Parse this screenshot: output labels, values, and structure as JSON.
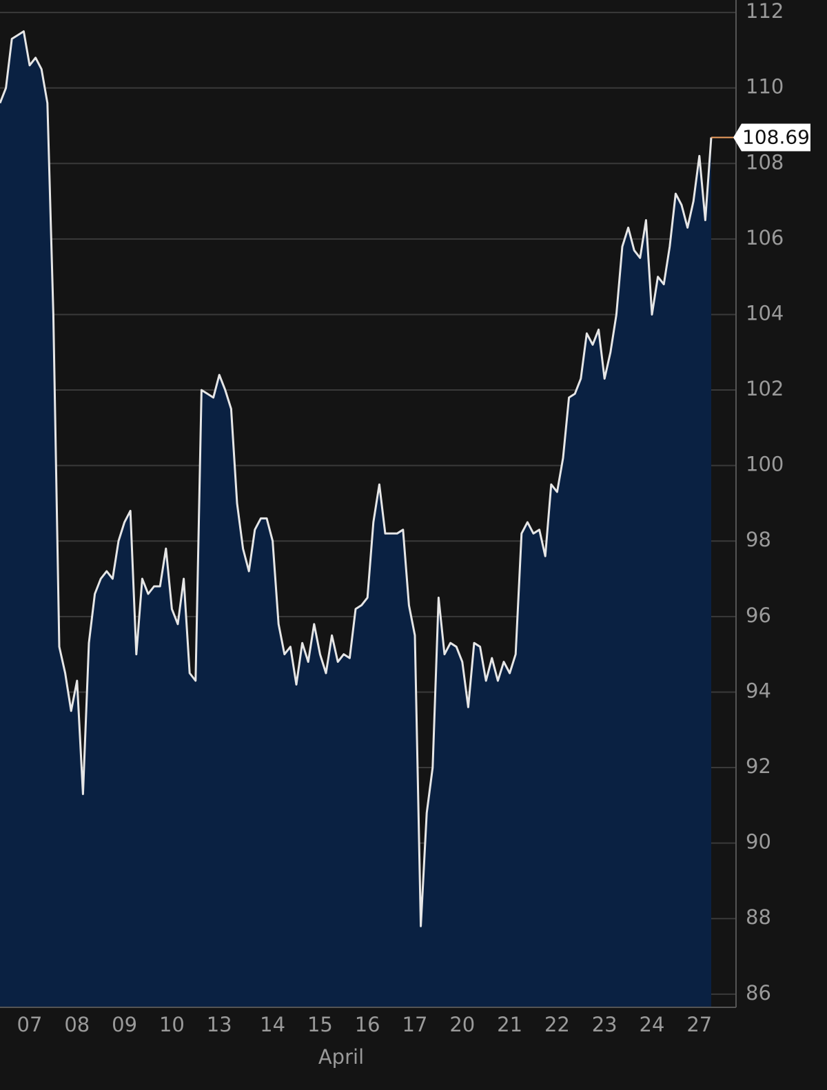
{
  "chart_data": {
    "type": "area",
    "x_label": "April",
    "categories": [
      null,
      null,
      null,
      null,
      null,
      "07",
      null,
      null,
      null,
      null,
      null,
      null,
      null,
      "08",
      null,
      null,
      null,
      null,
      null,
      null,
      null,
      "09",
      null,
      null,
      null,
      null,
      null,
      null,
      null,
      "10",
      null,
      null,
      null,
      null,
      null,
      null,
      null,
      "13",
      null,
      null,
      null,
      null,
      null,
      null,
      null,
      null,
      "14",
      null,
      null,
      null,
      null,
      null,
      null,
      null,
      "15",
      null,
      null,
      null,
      null,
      null,
      null,
      null,
      "16",
      null,
      null,
      null,
      null,
      null,
      null,
      null,
      "17",
      null,
      null,
      null,
      null,
      null,
      null,
      null,
      "20",
      null,
      null,
      null,
      null,
      null,
      null,
      null,
      "21",
      null,
      null,
      null,
      null,
      null,
      null,
      null,
      "22",
      null,
      null,
      null,
      null,
      null,
      null,
      null,
      "23",
      null,
      null,
      null,
      null,
      null,
      null,
      null,
      "24",
      null,
      null,
      null,
      null,
      null,
      null,
      null,
      "27",
      null,
      null
    ],
    "values": [
      109.6,
      110,
      111.3,
      111.4,
      111.5,
      110.6,
      110.8,
      110.5,
      109.6,
      104,
      95.2,
      94.5,
      93.5,
      94.3,
      91.3,
      95.3,
      96.6,
      97.0,
      97.2,
      97.0,
      98.0,
      98.5,
      98.8,
      95.0,
      97.0,
      96.6,
      96.8,
      96.8,
      97.8,
      96.2,
      95.8,
      97.0,
      94.5,
      94.3,
      102.0,
      101.9,
      101.8,
      102.4,
      102.0,
      101.5,
      99.0,
      97.8,
      97.2,
      98.3,
      98.6,
      98.6,
      98.0,
      95.8,
      95.0,
      95.2,
      94.2,
      95.3,
      94.8,
      95.8,
      95.0,
      94.5,
      95.5,
      94.8,
      95.0,
      94.9,
      96.2,
      96.3,
      96.5,
      98.5,
      99.5,
      98.2,
      98.2,
      98.2,
      98.3,
      96.3,
      95.5,
      87.8,
      90.8,
      92.0,
      96.5,
      95.0,
      95.3,
      95.2,
      94.8,
      93.6,
      95.3,
      95.2,
      94.3,
      94.9,
      94.3,
      94.8,
      94.5,
      95.0,
      98.2,
      98.5,
      98.2,
      98.3,
      97.6,
      99.5,
      99.3,
      100.2,
      101.8,
      101.9,
      102.3,
      103.5,
      103.2,
      103.6,
      102.3,
      103.0,
      104.0,
      105.8,
      106.3,
      105.7,
      105.5,
      106.5,
      104.0,
      105.0,
      104.8,
      105.8,
      107.2,
      106.9,
      106.3,
      107.0,
      108.2,
      106.5,
      108.69
    ],
    "color": "#e6e6e6",
    "fill_color": "#0a2142",
    "marker_color": "#f0a060",
    "ylim": [
      85.65,
      112.33
    ],
    "yticks": [
      86,
      88,
      90,
      92,
      94,
      96,
      98,
      100,
      102,
      104,
      106,
      108,
      110,
      112
    ],
    "grid": true
  }
}
